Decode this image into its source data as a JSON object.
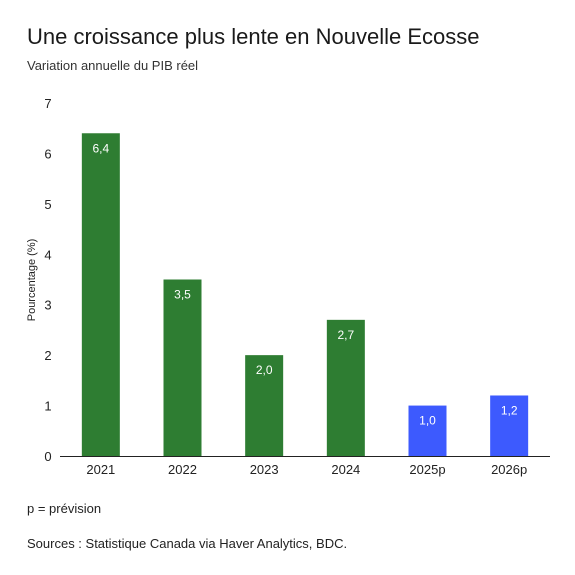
{
  "chart_data": {
    "type": "bar",
    "title": "Une croissance plus lente en Nouvelle Ecosse",
    "subtitle": "Variation annuelle du PIB réel",
    "ylabel": "Pourcentage (%)",
    "xlabel": "",
    "ylim": [
      0,
      7
    ],
    "yticks": [
      "0",
      "1",
      "2",
      "3",
      "4",
      "5",
      "6",
      "7"
    ],
    "categories": [
      "2021",
      "2022",
      "2023",
      "2024",
      "2025p",
      "2026p"
    ],
    "values": [
      6.4,
      3.5,
      2.0,
      2.7,
      1.0,
      1.2
    ],
    "value_labels": [
      "6,4",
      "3,5",
      "2,0",
      "2,7",
      "1,0",
      "1,2"
    ],
    "bar_colors": [
      "#2e7d32",
      "#2e7d32",
      "#2e7d32",
      "#2e7d32",
      "#3d5afe",
      "#3d5afe"
    ],
    "grid": false,
    "legend": "none"
  },
  "footer": {
    "note": "p = prévision",
    "sources": "Sources : Statistique Canada via Haver Analytics, BDC."
  }
}
